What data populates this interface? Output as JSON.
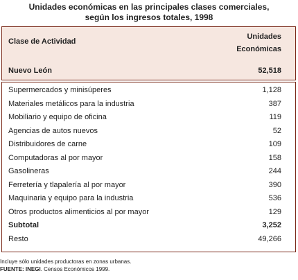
{
  "title": [
    "Unidades económicas en las principales clases comerciales,",
    "según los ingresos totales, 1998"
  ],
  "header": {
    "activity": "Clase de Actividad",
    "units": [
      "Unidades",
      "Económicas"
    ]
  },
  "total_row": {
    "label": "Nuevo León",
    "value": "52,518"
  },
  "rows": [
    [
      "Supermercados y minisúperes",
      "1,128"
    ],
    [
      "Materiales metálicos para la industria",
      "387"
    ],
    [
      "Mobiliario y equipo de oficina",
      "119"
    ],
    [
      "Agencias de autos nuevos",
      "52"
    ],
    [
      "Distribuidores de carne",
      "109"
    ],
    [
      "Computadoras al por mayor",
      "158"
    ],
    [
      "Gasolineras",
      "244"
    ],
    [
      "Ferretería y tlapalería al por mayor",
      "390"
    ],
    [
      "Maquinaria y equipo para la industria",
      "536"
    ],
    [
      "Otros productos alimenticios al por mayor",
      "129"
    ]
  ],
  "subtotal": {
    "label": "Subtotal",
    "value": "3,252"
  },
  "rest": {
    "label": "Resto",
    "value": "49,266"
  },
  "notes": {
    "note": "Incluye sólo unidades productoras en zonas urbanas.",
    "source_label": "FUENTE: INEGI",
    "source": ". Censos Económicos 1999."
  }
}
